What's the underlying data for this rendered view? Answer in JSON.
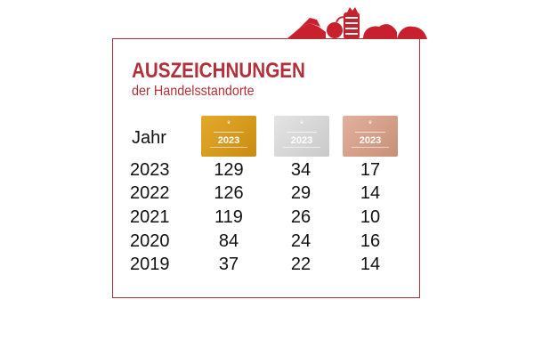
{
  "header": {
    "title": "AUSZEICHNUNGEN",
    "subtitle": "der Handelsstandorte"
  },
  "colors": {
    "accent": "#b3303a",
    "gold": "#d49a1c",
    "silver": "#d6d6d6",
    "bronze": "#d6a089"
  },
  "table": {
    "year_header": "Jahr",
    "badges": [
      {
        "name": "gold",
        "year": "2023"
      },
      {
        "name": "silver",
        "year": "2023"
      },
      {
        "name": "bronze",
        "year": "2023"
      }
    ],
    "rows": [
      {
        "year": "2023",
        "gold": "129",
        "silver": "34",
        "bronze": "17"
      },
      {
        "year": "2022",
        "gold": "126",
        "silver": "29",
        "bronze": "14"
      },
      {
        "year": "2021",
        "gold": "119",
        "silver": "26",
        "bronze": "10"
      },
      {
        "year": "2020",
        "gold": "84",
        "silver": "24",
        "bronze": "16"
      },
      {
        "year": "2019",
        "gold": "37",
        "silver": "22",
        "bronze": "14"
      }
    ]
  }
}
